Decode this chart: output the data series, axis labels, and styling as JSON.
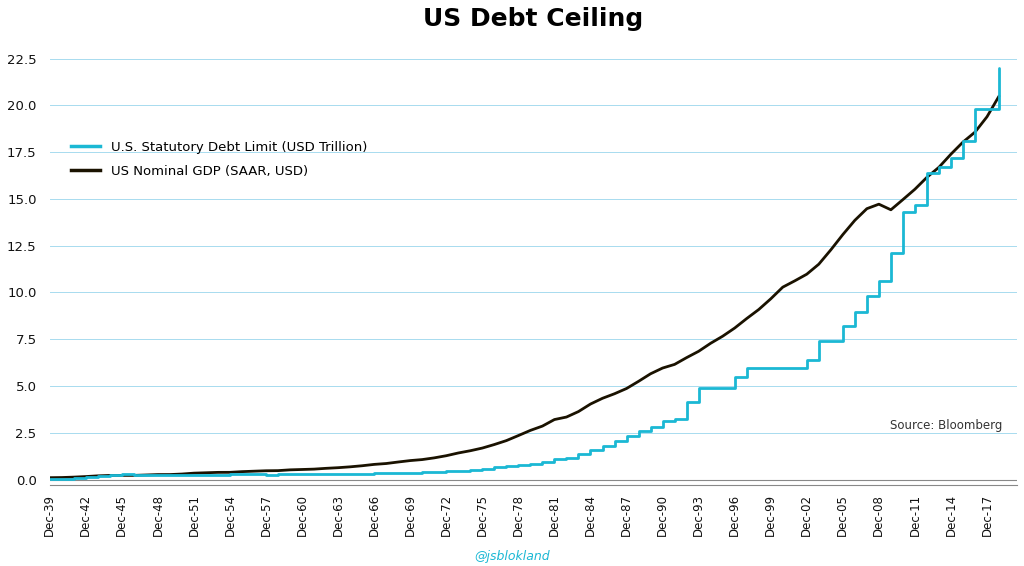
{
  "title": "US Debt Ceiling",
  "title_fontsize": 18,
  "background_color": "#FFFFFF",
  "plot_bg_color": "#FFFFFF",
  "grid_color_major": "#9ED8ED",
  "grid_color_minor": "#C8E8F5",
  "watermark": "@jsblokland",
  "source_text": "Source: Bloomberg",
  "debt_color": "#1BB8D4",
  "gdp_color": "#1A1200",
  "legend_debt": "U.S. Statutory Debt Limit (USD Trillion)",
  "legend_gdp": "US Nominal GDP (SAAR, USD)",
  "ylim": [
    -0.3,
    23.5
  ],
  "yticks": [
    0.0,
    2.5,
    5.0,
    7.5,
    10.0,
    12.5,
    15.0,
    17.5,
    20.0,
    22.5
  ],
  "debt_ceiling": [
    [
      1939,
      0.045
    ],
    [
      1940,
      0.049
    ],
    [
      1941,
      0.065
    ],
    [
      1942,
      0.125
    ],
    [
      1943,
      0.21
    ],
    [
      1944,
      0.26
    ],
    [
      1945,
      0.3
    ],
    [
      1946,
      0.275
    ],
    [
      1947,
      0.275
    ],
    [
      1948,
      0.275
    ],
    [
      1949,
      0.275
    ],
    [
      1950,
      0.275
    ],
    [
      1951,
      0.275
    ],
    [
      1952,
      0.275
    ],
    [
      1953,
      0.275
    ],
    [
      1954,
      0.281
    ],
    [
      1955,
      0.281
    ],
    [
      1956,
      0.278
    ],
    [
      1957,
      0.275
    ],
    [
      1958,
      0.288
    ],
    [
      1959,
      0.295
    ],
    [
      1960,
      0.293
    ],
    [
      1961,
      0.298
    ],
    [
      1962,
      0.308
    ],
    [
      1963,
      0.309
    ],
    [
      1964,
      0.315
    ],
    [
      1965,
      0.328
    ],
    [
      1966,
      0.33
    ],
    [
      1967,
      0.336
    ],
    [
      1968,
      0.365
    ],
    [
      1969,
      0.377
    ],
    [
      1970,
      0.395
    ],
    [
      1971,
      0.43
    ],
    [
      1972,
      0.45
    ],
    [
      1973,
      0.475
    ],
    [
      1974,
      0.495
    ],
    [
      1975,
      0.577
    ],
    [
      1976,
      0.682
    ],
    [
      1977,
      0.752
    ],
    [
      1978,
      0.798
    ],
    [
      1979,
      0.83
    ],
    [
      1980,
      0.935
    ],
    [
      1981,
      1.079
    ],
    [
      1982,
      1.143
    ],
    [
      1983,
      1.389
    ],
    [
      1984,
      1.573
    ],
    [
      1985,
      1.824
    ],
    [
      1986,
      2.079
    ],
    [
      1987,
      2.352
    ],
    [
      1988,
      2.601
    ],
    [
      1989,
      2.801
    ],
    [
      1990,
      3.123
    ],
    [
      1991,
      3.23
    ],
    [
      1992,
      4.145
    ],
    [
      1993,
      4.9
    ],
    [
      1994,
      4.9
    ],
    [
      1995,
      4.9
    ],
    [
      1996,
      5.5
    ],
    [
      1997,
      5.95
    ],
    [
      1998,
      5.95
    ],
    [
      1999,
      5.95
    ],
    [
      2000,
      5.95
    ],
    [
      2001,
      5.95
    ],
    [
      2002,
      6.4
    ],
    [
      2003,
      7.384
    ],
    [
      2004,
      7.384
    ],
    [
      2005,
      8.184
    ],
    [
      2006,
      8.965
    ],
    [
      2007,
      9.815
    ],
    [
      2008,
      10.615
    ],
    [
      2009,
      12.104
    ],
    [
      2010,
      14.294
    ],
    [
      2011,
      14.694
    ],
    [
      2012,
      16.394
    ],
    [
      2013,
      16.699
    ],
    [
      2014,
      17.212
    ],
    [
      2015,
      18.113
    ],
    [
      2016,
      19.808
    ],
    [
      2017,
      19.808
    ],
    [
      2018,
      21.988
    ]
  ],
  "gdp": [
    [
      1939,
      0.105
    ],
    [
      1940,
      0.113
    ],
    [
      1941,
      0.135
    ],
    [
      1942,
      0.165
    ],
    [
      1943,
      0.203
    ],
    [
      1944,
      0.225
    ],
    [
      1945,
      0.228
    ],
    [
      1946,
      0.228
    ],
    [
      1947,
      0.249
    ],
    [
      1948,
      0.271
    ],
    [
      1949,
      0.272
    ],
    [
      1950,
      0.3
    ],
    [
      1951,
      0.347
    ],
    [
      1952,
      0.368
    ],
    [
      1953,
      0.389
    ],
    [
      1954,
      0.391
    ],
    [
      1955,
      0.428
    ],
    [
      1956,
      0.452
    ],
    [
      1957,
      0.475
    ],
    [
      1958,
      0.482
    ],
    [
      1959,
      0.524
    ],
    [
      1960,
      0.543
    ],
    [
      1961,
      0.563
    ],
    [
      1962,
      0.605
    ],
    [
      1963,
      0.639
    ],
    [
      1964,
      0.685
    ],
    [
      1965,
      0.743
    ],
    [
      1966,
      0.815
    ],
    [
      1967,
      0.862
    ],
    [
      1968,
      0.943
    ],
    [
      1969,
      1.019
    ],
    [
      1970,
      1.073
    ],
    [
      1971,
      1.164
    ],
    [
      1972,
      1.279
    ],
    [
      1973,
      1.425
    ],
    [
      1974,
      1.545
    ],
    [
      1975,
      1.688
    ],
    [
      1976,
      1.877
    ],
    [
      1977,
      2.086
    ],
    [
      1978,
      2.356
    ],
    [
      1979,
      2.632
    ],
    [
      1980,
      2.862
    ],
    [
      1981,
      3.211
    ],
    [
      1982,
      3.345
    ],
    [
      1983,
      3.638
    ],
    [
      1984,
      4.04
    ],
    [
      1985,
      4.347
    ],
    [
      1986,
      4.59
    ],
    [
      1987,
      4.87
    ],
    [
      1988,
      5.253
    ],
    [
      1989,
      5.657
    ],
    [
      1990,
      5.963
    ],
    [
      1991,
      6.158
    ],
    [
      1992,
      6.52
    ],
    [
      1993,
      6.858
    ],
    [
      1994,
      7.287
    ],
    [
      1995,
      7.664
    ],
    [
      1996,
      8.1
    ],
    [
      1997,
      8.608
    ],
    [
      1998,
      9.089
    ],
    [
      1999,
      9.66
    ],
    [
      2000,
      10.285
    ],
    [
      2001,
      10.622
    ],
    [
      2002,
      10.978
    ],
    [
      2003,
      11.512
    ],
    [
      2004,
      12.277
    ],
    [
      2005,
      13.094
    ],
    [
      2006,
      13.856
    ],
    [
      2007,
      14.478
    ],
    [
      2008,
      14.719
    ],
    [
      2009,
      14.419
    ],
    [
      2010,
      14.964
    ],
    [
      2011,
      15.518
    ],
    [
      2012,
      16.155
    ],
    [
      2013,
      16.692
    ],
    [
      2014,
      17.393
    ],
    [
      2015,
      18.037
    ],
    [
      2016,
      18.569
    ],
    [
      2017,
      19.391
    ],
    [
      2018,
      20.494
    ]
  ],
  "xtick_years": [
    1939,
    1942,
    1945,
    1948,
    1951,
    1954,
    1957,
    1960,
    1963,
    1966,
    1969,
    1972,
    1975,
    1978,
    1981,
    1984,
    1987,
    1990,
    1993,
    1996,
    1999,
    2002,
    2005,
    2008,
    2011,
    2014,
    2017
  ]
}
